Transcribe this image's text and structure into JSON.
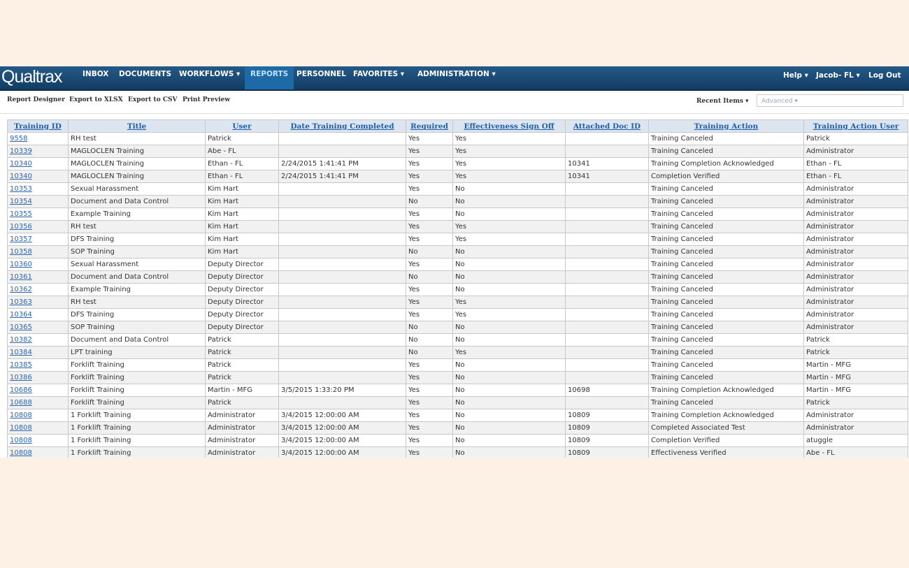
{
  "nav": {
    "logo": "Qualtrax",
    "items": [
      "INBOX",
      "DOCUMENTS",
      "WORKFLOWS ▾",
      "REPORTS",
      "PERSONNEL",
      "FAVORITES ▾",
      "ADMINISTRATION ▾"
    ],
    "right": [
      "Help ▾",
      "Jacob- FL ▾",
      "Log Out"
    ]
  },
  "toolbar": {
    "items": [
      "Report Designer",
      "Export to XLSX",
      "Export to CSV",
      "Print Preview"
    ],
    "recent": "Recent Items ▾",
    "search_placeholder": "Advanced ▾"
  },
  "table": {
    "headers": [
      "Training ID",
      "Title",
      "User",
      "Date Training Completed",
      "Required",
      "Effectiveness Sign Off",
      "Attached Doc ID",
      "Training Action",
      "Training Action User"
    ],
    "rows": [
      [
        "9558",
        "RH test",
        "Patrick",
        null,
        "Yes",
        "Yes",
        null,
        "Training Canceled",
        "Patrick"
      ],
      [
        "10339",
        "MAGLOCLEN Training",
        "Abe - FL",
        null,
        "Yes",
        "Yes",
        null,
        "Training Canceled",
        "Administrator"
      ],
      [
        "10340",
        "MAGLOCLEN Training",
        "Ethan - FL",
        "2/24/2015 1:41:41 PM",
        "Yes",
        "Yes",
        "10341",
        "Training Completion Acknowledged",
        "Ethan - FL"
      ],
      [
        "10340",
        "MAGLOCLEN Training",
        "Ethan - FL",
        "2/24/2015 1:41:41 PM",
        "Yes",
        "Yes",
        "10341",
        "Completion Verified",
        "Ethan - FL"
      ],
      [
        "10353",
        "Sexual Harassment",
        "Kim Hart",
        null,
        "Yes",
        "No",
        null,
        "Training Canceled",
        "Administrator"
      ],
      [
        "10354",
        "Document and Data Control",
        "Kim Hart",
        null,
        "No",
        "No",
        null,
        "Training Canceled",
        "Administrator"
      ],
      [
        "10355",
        "Example Training",
        "Kim Hart",
        null,
        "Yes",
        "No",
        null,
        "Training Canceled",
        "Administrator"
      ],
      [
        "10356",
        "RH test",
        "Kim Hart",
        null,
        "Yes",
        "Yes",
        null,
        "Training Canceled",
        "Administrator"
      ],
      [
        "10357",
        "DFS Training",
        "Kim Hart",
        null,
        "Yes",
        "Yes",
        null,
        "Training Canceled",
        "Administrator"
      ],
      [
        "10358",
        "SOP Training",
        "Kim Hart",
        null,
        "No",
        "No",
        null,
        "Training Canceled",
        "Administrator"
      ],
      [
        "10360",
        "Sexual Harassment",
        "Deputy Director",
        null,
        "Yes",
        "No",
        null,
        "Training Canceled",
        "Administrator"
      ],
      [
        "10361",
        "Document and Data Control",
        "Deputy Director",
        null,
        "No",
        "No",
        null,
        "Training Canceled",
        "Administrator"
      ],
      [
        "10362",
        "Example Training",
        "Deputy Director",
        null,
        "Yes",
        "No",
        null,
        "Training Canceled",
        "Administrator"
      ],
      [
        "10363",
        "RH test",
        "Deputy Director",
        null,
        "Yes",
        "Yes",
        null,
        "Training Canceled",
        "Administrator"
      ],
      [
        "10364",
        "DFS Training",
        "Deputy Director",
        null,
        "Yes",
        "Yes",
        null,
        "Training Canceled",
        "Administrator"
      ],
      [
        "10365",
        "SOP Training",
        "Deputy Director",
        null,
        "No",
        "No",
        null,
        "Training Canceled",
        "Administrator"
      ],
      [
        "10382",
        "Document and Data Control",
        "Patrick",
        null,
        "No",
        "No",
        null,
        "Training Canceled",
        "Patrick"
      ],
      [
        "10384",
        "LPT training",
        "Patrick",
        null,
        "No",
        "Yes",
        null,
        "Training Canceled",
        "Patrick"
      ],
      [
        "10385",
        "Forklift Training",
        "Patrick",
        null,
        "Yes",
        "No",
        null,
        "Training Canceled",
        "Martin - MFG"
      ],
      [
        "10386",
        "Forklift Training",
        "Patrick",
        null,
        "Yes",
        "No",
        null,
        "Training Canceled",
        "Martin - MFG"
      ],
      [
        "10686",
        "Forklift Training",
        "Martin - MFG",
        "3/5/2015 1:33:20 PM",
        "Yes",
        "No",
        "10698",
        "Training Completion Acknowledged",
        "Martin - MFG"
      ],
      [
        "10688",
        "Forklift Training",
        "Patrick",
        null,
        "Yes",
        "No",
        null,
        "Training Canceled",
        "Patrick"
      ],
      [
        "10808",
        "1 Forklift Training",
        "Administrator",
        "3/4/2015 12:00:00 AM",
        "Yes",
        "No",
        "10809",
        "Training Completion Acknowledged",
        "Administrator"
      ],
      [
        "10808",
        "1 Forklift Training",
        "Administrator",
        "3/4/2015 12:00:00 AM",
        "Yes",
        "No",
        "10809",
        "Completed Associated Test",
        "Administrator"
      ],
      [
        "10808",
        "1 Forklift Training",
        "Administrator",
        "3/4/2015 12:00:00 AM",
        "Yes",
        "No",
        "10809",
        "Completion Verified",
        "atuggle"
      ],
      [
        "10808",
        "1 Forklift Training",
        "Administrator",
        "3/4/2015 12:00:00 AM",
        "Yes",
        "No",
        "10809",
        "Effectiveness Verified",
        "Abe - FL"
      ]
    ]
  }
}
